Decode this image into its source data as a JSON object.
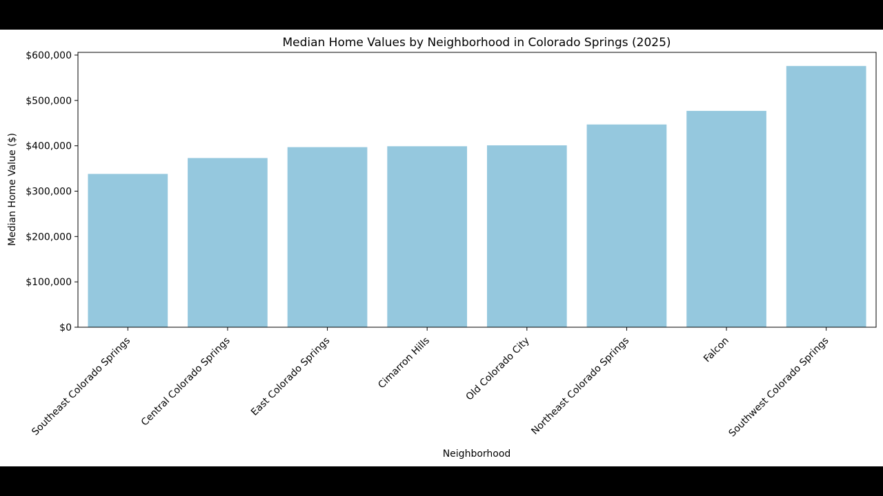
{
  "chart_data": {
    "type": "bar",
    "title": "Median Home Values by Neighborhood in Colorado Springs (2025)",
    "xlabel": "Neighborhood",
    "ylabel": "Median Home Value ($)",
    "categories": [
      "Southeast Colorado Springs",
      "Central Colorado Springs",
      "East Colorado Springs",
      "Cimarron Hills",
      "Old Colorado City",
      "Northeast Colorado Springs",
      "Falcon",
      "Southwest Colorado Springs"
    ],
    "values": [
      338000,
      373000,
      397000,
      399000,
      401000,
      447000,
      477000,
      576000
    ],
    "yticks": [
      0,
      100000,
      200000,
      300000,
      400000,
      500000,
      600000
    ],
    "ytick_labels": [
      "$0",
      "$100,000",
      "$200,000",
      "$300,000",
      "$400,000",
      "$500,000",
      "$600,000"
    ],
    "ylim": [
      0,
      606000
    ],
    "grid": false,
    "bar_color": "#95c8de"
  }
}
